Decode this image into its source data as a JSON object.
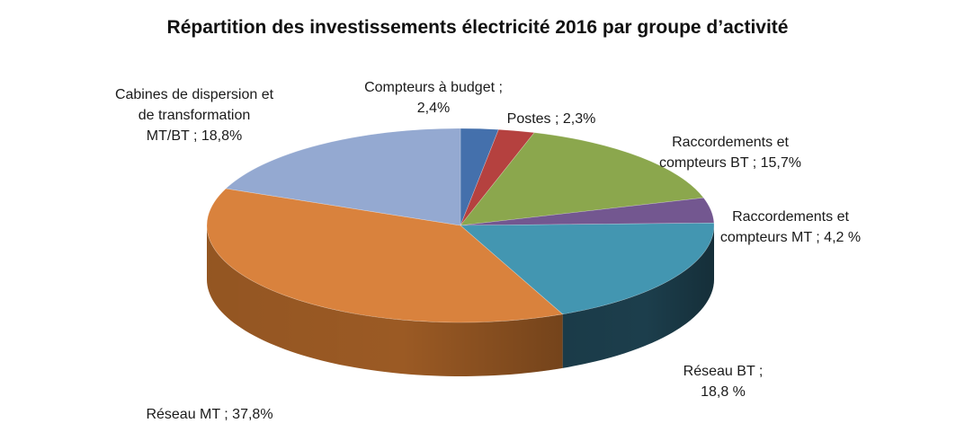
{
  "chart_data": {
    "type": "pie",
    "title": "Répartition des investissements électricité 2016 par groupe d’activité",
    "three_d": true,
    "legend": "none",
    "slices": [
      {
        "name": "Compteurs à budget",
        "value": 2.4,
        "label_lines": [
          "Compteurs à budget ;",
          "2,4%"
        ],
        "color": "#4470ac",
        "side_color": "#2f5183"
      },
      {
        "name": "Postes",
        "value": 2.3,
        "label_lines": [
          "Postes ; 2,3%"
        ],
        "color": "#b5413f",
        "side_color": "#822d2b"
      },
      {
        "name": "Raccordements et compteurs BT",
        "value": 15.7,
        "label_lines": [
          "Raccordements et",
          "compteurs BT ; 15,7%"
        ],
        "color": "#8ba74d",
        "side_color": "#627935"
      },
      {
        "name": "Raccordements et compteurs MT",
        "value": 4.2,
        "label_lines": [
          "Raccordements et",
          "compteurs MT ; 4,2 %"
        ],
        "color": "#735790",
        "side_color": "#503b66"
      },
      {
        "name": "Réseau BT",
        "value": 18.8,
        "label_lines": [
          "Réseau BT ;",
          "18,8 %"
        ],
        "color": "#4396b1",
        "side_color": "#1c3e4c"
      },
      {
        "name": "Réseau MT",
        "value": 37.8,
        "label_lines": [
          "Réseau MT ; 37,8%"
        ],
        "color": "#d9823d",
        "side_color": "#9b5a24"
      },
      {
        "name": "Cabines de dispersion et de transformation MT/BT",
        "value": 18.8,
        "label_lines": [
          "Cabines de dispersion et",
          "de transformation",
          "MT/BT ; 18,8%"
        ],
        "color": "#94a9d1",
        "side_color": "#6b7fa6"
      }
    ]
  }
}
